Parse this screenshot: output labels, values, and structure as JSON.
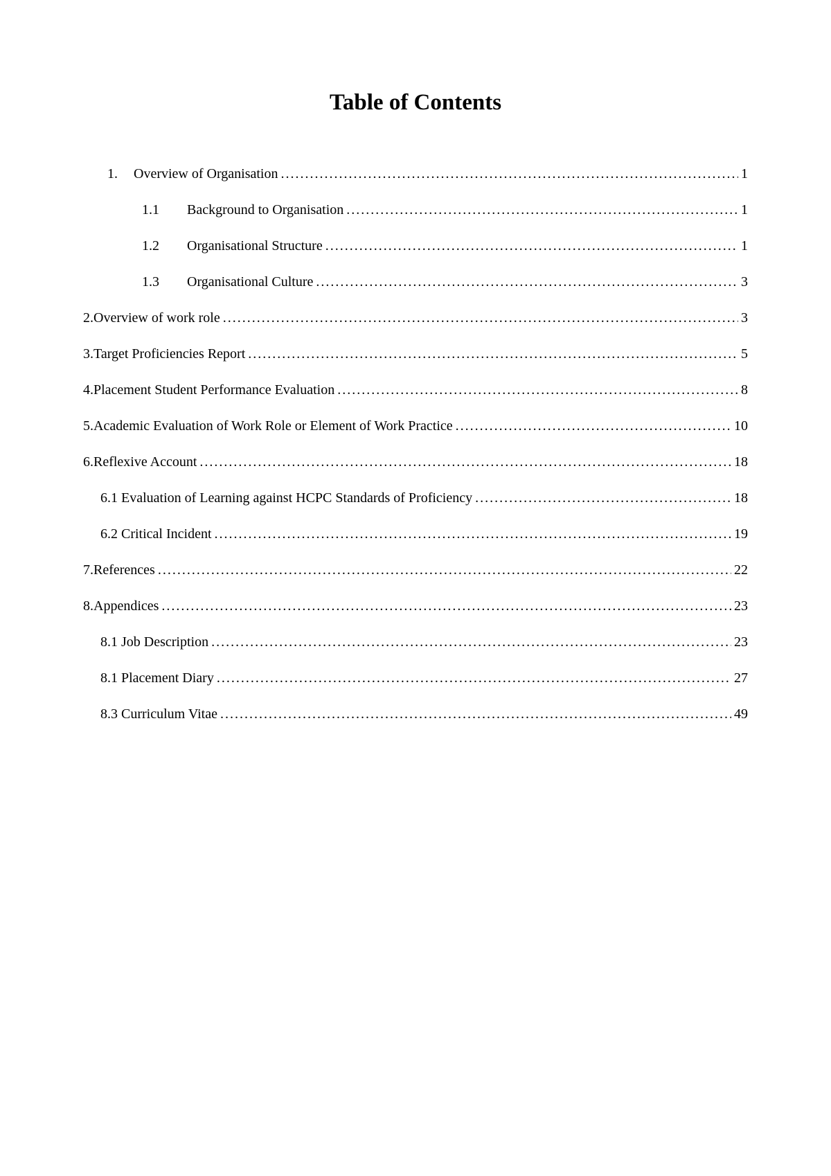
{
  "title": "Table of Contents",
  "entries": [
    {
      "level": 0,
      "style": "first",
      "numLabel": "1.",
      "text": "Overview of Organisation",
      "page": "1"
    },
    {
      "level": 1,
      "style": "sub",
      "numLabel": "1.1",
      "text": "Background to Organisation",
      "page": "1"
    },
    {
      "level": 1,
      "style": "sub",
      "numLabel": "1.2",
      "text": "Organisational Structure",
      "page": "1"
    },
    {
      "level": 1,
      "style": "sub",
      "numLabel": "1.3",
      "text": "Organisational Culture",
      "page": "3"
    },
    {
      "level": 0,
      "style": "plain",
      "numLabel": "2. ",
      "text": "Overview of work role",
      "page": "3"
    },
    {
      "level": 0,
      "style": "plain",
      "numLabel": "3. ",
      "text": "Target Proficiencies Report",
      "page": "5"
    },
    {
      "level": 0,
      "style": "plain",
      "numLabel": "4. ",
      "text": "Placement Student Performance Evaluation",
      "page": "8"
    },
    {
      "level": 0,
      "style": "plain",
      "numLabel": "5. ",
      "text": "Academic Evaluation of Work Role or Element of Work Practice",
      "page": "10"
    },
    {
      "level": 0,
      "style": "plain",
      "numLabel": "6. ",
      "text": "Reflexive Account",
      "page": "18"
    },
    {
      "level": 1,
      "style": "plain2",
      "numLabel": "",
      "text": "6.1 Evaluation of Learning against HCPC Standards of Proficiency",
      "page": "18"
    },
    {
      "level": 1,
      "style": "plain2",
      "numLabel": "",
      "text": "6.2 Critical Incident",
      "page": "19"
    },
    {
      "level": 0,
      "style": "plain",
      "numLabel": "7. ",
      "text": "References",
      "page": "22"
    },
    {
      "level": 0,
      "style": "plain",
      "numLabel": "8. ",
      "text": "Appendices",
      "page": "23"
    },
    {
      "level": 1,
      "style": "plain2",
      "numLabel": "",
      "text": "8.1 Job Description",
      "page": "23"
    },
    {
      "level": 1,
      "style": "plain2",
      "numLabel": "",
      "text": "8.1 Placement Diary",
      "page": "27"
    },
    {
      "level": 1,
      "style": "plain2",
      "numLabel": "",
      "text": "8.3 Curriculum Vitae",
      "page": "49"
    }
  ],
  "styling": {
    "background_color": "#ffffff",
    "text_color": "#000000",
    "title_fontsize": 33,
    "entry_fontsize": 20,
    "line_spacing": 24,
    "font_family": "Georgia, Times New Roman, serif"
  }
}
